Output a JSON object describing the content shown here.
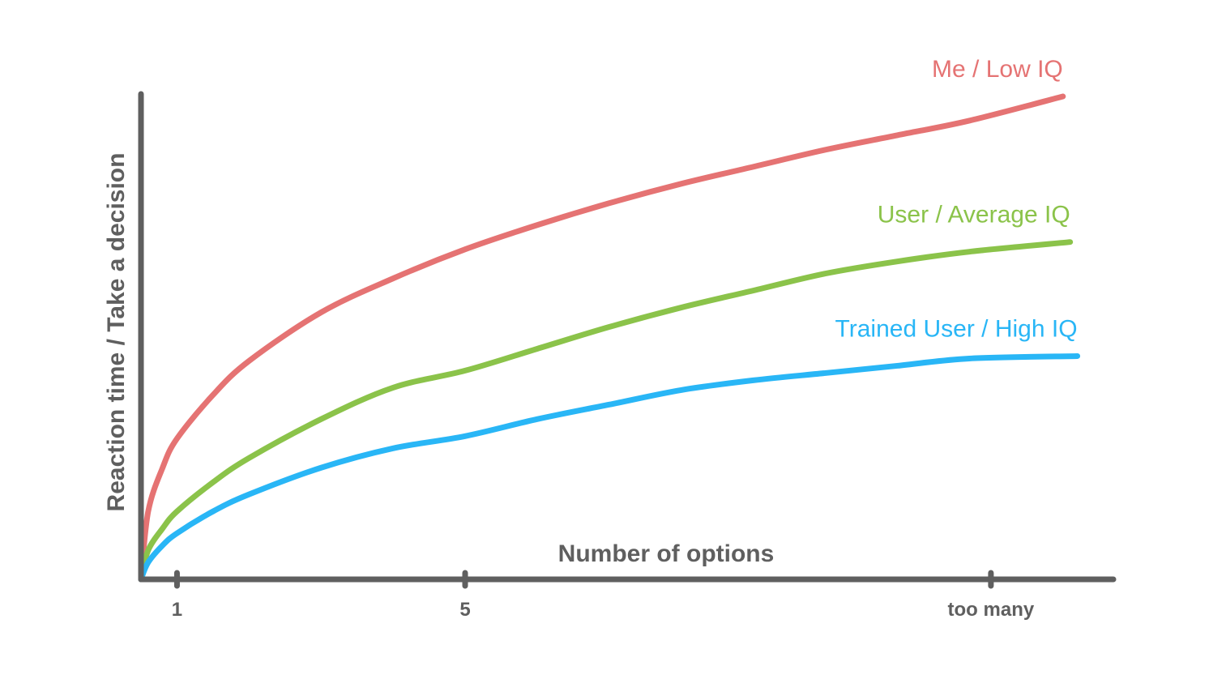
{
  "chart_data": {
    "type": "line",
    "xlabel": "Number of options",
    "ylabel": "Reaction time / Take a decision",
    "x_ticks": [
      {
        "value": 1,
        "label": "1"
      },
      {
        "value": 5,
        "label": "5"
      },
      {
        "value": 12.3,
        "label": "too many"
      }
    ],
    "xlim": [
      0.5,
      14
    ],
    "ylim": [
      0,
      100
    ],
    "grid": false,
    "legend": "inline labels at line ends",
    "series": [
      {
        "name": "Me / Low IQ",
        "color": "#e57373",
        "x": [
          0.5,
          0.6,
          0.8,
          1,
          1.5,
          2,
          3,
          4,
          5,
          6,
          7,
          8,
          9,
          10,
          11,
          12,
          13.3
        ],
        "y": [
          0,
          14,
          23,
          29,
          38,
          45,
          55,
          62,
          68,
          73,
          77.5,
          81.5,
          85,
          88.5,
          91.5,
          94.5,
          99.5
        ]
      },
      {
        "name": "User / Average IQ",
        "color": "#8bc34a",
        "x": [
          0.5,
          0.6,
          0.8,
          1,
          1.5,
          2,
          3,
          4,
          5,
          6,
          7,
          8,
          9,
          10,
          11,
          12,
          13.4
        ],
        "y": [
          0,
          6,
          10.5,
          14,
          20,
          25,
          33,
          39.5,
          43,
          47.5,
          52,
          56,
          59.5,
          63,
          65.5,
          67.5,
          69.5
        ]
      },
      {
        "name": "Trained User / High IQ",
        "color": "#29b6f6",
        "x": [
          0.5,
          0.6,
          0.8,
          1,
          1.5,
          2,
          3,
          4,
          5,
          6,
          7,
          8,
          9,
          10,
          11,
          12,
          13.5
        ],
        "y": [
          0,
          3.5,
          7,
          9.5,
          14,
          17.5,
          23,
          27,
          29.5,
          33,
          36,
          39,
          41,
          42.5,
          44,
          45.5,
          46
        ]
      }
    ]
  }
}
